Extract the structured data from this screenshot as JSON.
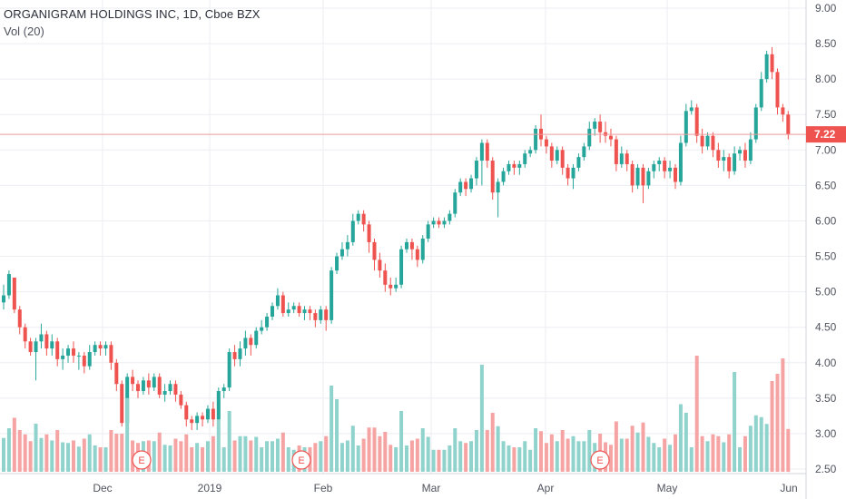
{
  "header": {
    "title": "ORGANIGRAM HOLDINGS INC, 1D, Cboe BZX",
    "volume_indicator": "Vol (20)"
  },
  "current_price_label": "7.22",
  "earnings_marker_label": "E",
  "colors": {
    "up": "#26a69a",
    "down": "#ef5350",
    "vol_up": "#8fd3cc",
    "vol_down": "#f5a3a3",
    "grid": "#eceef2",
    "axis": "#50535e"
  },
  "chart_data": {
    "type": "candlestick",
    "title": "ORGANIGRAM HOLDINGS INC, 1D, Cboe BZX",
    "y_axis": {
      "ticks": [
        "9.00",
        "8.50",
        "8.00",
        "7.50",
        "7.00",
        "6.50",
        "6.00",
        "5.50",
        "5.00",
        "4.50",
        "4.00",
        "3.50",
        "3.00",
        "2.50"
      ],
      "range": [
        2.5,
        9.0
      ]
    },
    "x_axis": {
      "ticks": [
        "Dec",
        "2019",
        "Feb",
        "Mar",
        "Apr",
        "May",
        "Jun"
      ]
    },
    "last_price": 7.22,
    "earnings_events": [
      "mid-December 2018",
      "late January 2019",
      "mid-April 2019"
    ],
    "candles": [
      [
        4.85,
        4.95,
        4.75,
        5.1
      ],
      [
        4.95,
        5.25,
        4.9,
        5.3
      ],
      [
        5.2,
        4.75,
        4.7,
        5.2
      ],
      [
        4.75,
        4.5,
        4.4,
        4.8
      ],
      [
        4.5,
        4.3,
        4.2,
        4.55
      ],
      [
        4.3,
        4.15,
        4.1,
        4.35
      ],
      [
        4.15,
        4.3,
        3.75,
        4.35
      ],
      [
        4.3,
        4.4,
        4.2,
        4.55
      ],
      [
        4.4,
        4.2,
        4.1,
        4.45
      ],
      [
        4.2,
        4.3,
        4.1,
        4.4
      ],
      [
        4.3,
        4.05,
        3.95,
        4.35
      ],
      [
        4.05,
        4.1,
        3.9,
        4.2
      ],
      [
        4.1,
        4.2,
        4.0,
        4.25
      ],
      [
        4.2,
        4.1,
        4.0,
        4.3
      ],
      [
        4.1,
        4.1,
        3.9,
        4.15
      ],
      [
        4.1,
        3.95,
        3.85,
        4.15
      ],
      [
        3.95,
        4.15,
        3.9,
        4.25
      ],
      [
        4.15,
        4.25,
        4.1,
        4.3
      ],
      [
        4.25,
        4.2,
        4.1,
        4.3
      ],
      [
        4.2,
        4.25,
        4.1,
        4.3
      ],
      [
        4.25,
        4.0,
        3.9,
        4.3
      ],
      [
        4.0,
        3.7,
        3.6,
        4.05
      ],
      [
        3.7,
        3.15,
        3.1,
        3.75
      ],
      [
        3.15,
        3.8,
        3.1,
        3.85
      ],
      [
        3.8,
        3.7,
        3.6,
        3.9
      ],
      [
        3.7,
        3.6,
        3.5,
        3.75
      ],
      [
        3.6,
        3.75,
        3.55,
        3.8
      ],
      [
        3.75,
        3.65,
        3.55,
        3.85
      ],
      [
        3.65,
        3.8,
        3.6,
        3.85
      ],
      [
        3.8,
        3.55,
        3.5,
        3.85
      ],
      [
        3.55,
        3.6,
        3.45,
        3.7
      ],
      [
        3.6,
        3.7,
        3.55,
        3.75
      ],
      [
        3.7,
        3.55,
        3.45,
        3.75
      ],
      [
        3.55,
        3.4,
        3.35,
        3.6
      ],
      [
        3.4,
        3.2,
        3.1,
        3.45
      ],
      [
        3.2,
        3.15,
        3.05,
        3.25
      ],
      [
        3.15,
        3.25,
        3.05,
        3.3
      ],
      [
        3.25,
        3.2,
        3.1,
        3.3
      ],
      [
        3.2,
        3.35,
        3.15,
        3.4
      ],
      [
        3.35,
        3.2,
        3.1,
        3.45
      ],
      [
        3.2,
        3.6,
        3.15,
        3.65
      ],
      [
        3.6,
        3.65,
        3.5,
        3.7
      ],
      [
        3.65,
        4.15,
        3.6,
        4.2
      ],
      [
        4.15,
        4.05,
        3.95,
        4.25
      ],
      [
        4.05,
        4.2,
        3.95,
        4.3
      ],
      [
        4.2,
        4.35,
        4.1,
        4.45
      ],
      [
        4.35,
        4.25,
        4.1,
        4.4
      ],
      [
        4.25,
        4.45,
        4.2,
        4.5
      ],
      [
        4.45,
        4.5,
        4.4,
        4.6
      ],
      [
        4.5,
        4.65,
        4.45,
        4.7
      ],
      [
        4.65,
        4.8,
        4.6,
        4.85
      ],
      [
        4.8,
        4.95,
        4.75,
        5.05
      ],
      [
        4.95,
        4.7,
        4.65,
        5.0
      ],
      [
        4.7,
        4.75,
        4.65,
        4.85
      ],
      [
        4.75,
        4.8,
        4.7,
        4.85
      ],
      [
        4.8,
        4.7,
        4.65,
        4.85
      ],
      [
        4.7,
        4.75,
        4.6,
        4.8
      ],
      [
        4.75,
        4.7,
        4.6,
        4.8
      ],
      [
        4.7,
        4.6,
        4.5,
        4.75
      ],
      [
        4.6,
        4.75,
        4.55,
        4.8
      ],
      [
        4.75,
        4.6,
        4.45,
        4.8
      ],
      [
        4.6,
        5.3,
        4.55,
        5.35
      ],
      [
        5.3,
        5.5,
        5.25,
        5.55
      ],
      [
        5.5,
        5.6,
        5.45,
        5.7
      ],
      [
        5.6,
        5.7,
        5.5,
        5.8
      ],
      [
        5.7,
        6.0,
        5.65,
        6.1
      ],
      [
        6.0,
        6.1,
        5.95,
        6.15
      ],
      [
        6.1,
        5.95,
        5.85,
        6.15
      ],
      [
        5.95,
        5.7,
        5.55,
        6.0
      ],
      [
        5.7,
        5.45,
        5.3,
        5.75
      ],
      [
        5.45,
        5.3,
        5.2,
        5.55
      ],
      [
        5.3,
        5.1,
        5.0,
        5.4
      ],
      [
        5.1,
        5.05,
        4.95,
        5.2
      ],
      [
        5.05,
        5.1,
        5.0,
        5.2
      ],
      [
        5.1,
        5.6,
        5.05,
        5.65
      ],
      [
        5.6,
        5.7,
        5.55,
        5.75
      ],
      [
        5.7,
        5.6,
        5.45,
        5.75
      ],
      [
        5.6,
        5.45,
        5.35,
        5.65
      ],
      [
        5.45,
        5.75,
        5.4,
        5.8
      ],
      [
        5.75,
        5.95,
        5.7,
        6.0
      ],
      [
        5.95,
        6.0,
        5.9,
        6.05
      ],
      [
        6.0,
        5.95,
        5.9,
        6.05
      ],
      [
        5.95,
        6.0,
        5.9,
        6.05
      ],
      [
        6.0,
        6.1,
        5.95,
        6.15
      ],
      [
        6.1,
        6.4,
        6.05,
        6.45
      ],
      [
        6.4,
        6.55,
        6.35,
        6.6
      ],
      [
        6.55,
        6.45,
        6.35,
        6.6
      ],
      [
        6.45,
        6.6,
        6.4,
        6.65
      ],
      [
        6.6,
        6.85,
        6.5,
        6.9
      ],
      [
        6.85,
        7.1,
        6.5,
        7.15
      ],
      [
        7.1,
        6.85,
        6.75,
        7.15
      ],
      [
        6.85,
        6.4,
        6.3,
        6.9
      ],
      [
        6.4,
        6.55,
        6.05,
        6.6
      ],
      [
        6.55,
        6.7,
        6.5,
        6.75
      ],
      [
        6.7,
        6.8,
        6.65,
        6.85
      ],
      [
        6.8,
        6.75,
        6.65,
        6.85
      ],
      [
        6.75,
        6.8,
        6.65,
        6.85
      ],
      [
        6.8,
        6.95,
        6.75,
        7.0
      ],
      [
        6.95,
        7.0,
        6.9,
        7.05
      ],
      [
        7.0,
        7.3,
        6.95,
        7.35
      ],
      [
        7.3,
        7.15,
        7.05,
        7.5
      ],
      [
        7.15,
        7.05,
        6.95,
        7.2
      ],
      [
        7.05,
        6.85,
        6.75,
        7.1
      ],
      [
        6.85,
        7.0,
        6.8,
        7.05
      ],
      [
        7.0,
        6.75,
        6.65,
        7.05
      ],
      [
        6.75,
        6.6,
        6.5,
        6.8
      ],
      [
        6.6,
        6.75,
        6.45,
        6.8
      ],
      [
        6.75,
        6.9,
        6.7,
        6.95
      ],
      [
        6.9,
        7.05,
        6.85,
        7.1
      ],
      [
        7.05,
        7.3,
        7.0,
        7.4
      ],
      [
        7.3,
        7.4,
        7.2,
        7.45
      ],
      [
        7.4,
        7.25,
        7.1,
        7.5
      ],
      [
        7.25,
        7.2,
        7.1,
        7.4
      ],
      [
        7.2,
        7.15,
        7.05,
        7.3
      ],
      [
        7.15,
        6.8,
        6.7,
        7.2
      ],
      [
        6.8,
        6.95,
        6.75,
        7.05
      ],
      [
        6.95,
        6.8,
        6.7,
        7.0
      ],
      [
        6.8,
        6.5,
        6.4,
        6.85
      ],
      [
        6.5,
        6.75,
        6.45,
        6.8
      ],
      [
        6.75,
        6.5,
        6.25,
        6.8
      ],
      [
        6.5,
        6.7,
        6.45,
        6.75
      ],
      [
        6.7,
        6.8,
        6.6,
        6.85
      ],
      [
        6.8,
        6.85,
        6.7,
        6.9
      ],
      [
        6.85,
        6.7,
        6.6,
        6.9
      ],
      [
        6.7,
        6.75,
        6.6,
        6.85
      ],
      [
        6.75,
        6.55,
        6.45,
        6.8
      ],
      [
        6.55,
        7.1,
        6.5,
        7.2
      ],
      [
        7.1,
        7.55,
        7.05,
        7.65
      ],
      [
        7.55,
        7.6,
        7.5,
        7.7
      ],
      [
        7.6,
        7.2,
        7.1,
        7.65
      ],
      [
        7.2,
        7.05,
        6.95,
        7.3
      ],
      [
        7.05,
        7.2,
        7.0,
        7.25
      ],
      [
        7.2,
        7.0,
        6.9,
        7.25
      ],
      [
        7.0,
        6.85,
        6.75,
        7.1
      ],
      [
        6.85,
        6.9,
        6.7,
        7.0
      ],
      [
        6.9,
        6.7,
        6.6,
        6.95
      ],
      [
        6.7,
        6.95,
        6.65,
        7.05
      ],
      [
        6.95,
        7.0,
        6.85,
        7.05
      ],
      [
        7.0,
        6.85,
        6.75,
        7.1
      ],
      [
        6.85,
        7.15,
        6.8,
        7.25
      ],
      [
        7.15,
        7.6,
        7.1,
        7.65
      ],
      [
        7.6,
        8.0,
        7.55,
        8.1
      ],
      [
        8.0,
        8.35,
        7.95,
        8.4
      ],
      [
        8.35,
        8.1,
        8.0,
        8.45
      ],
      [
        8.1,
        7.6,
        7.5,
        8.15
      ],
      [
        7.6,
        7.5,
        7.4,
        7.65
      ],
      [
        7.5,
        7.22,
        7.15,
        7.55
      ]
    ],
    "volume_pattern": "daily volume bars aligned below each candle, colored by candle direction"
  }
}
